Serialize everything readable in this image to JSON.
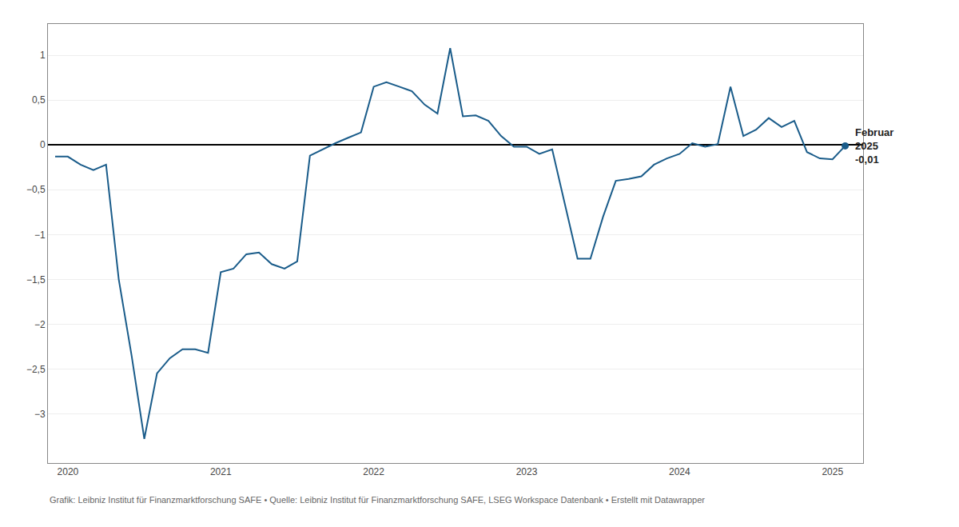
{
  "chart_data": {
    "type": "line",
    "color": "#1a5c8a",
    "caption": "Grafik: Leibniz Institut für Finanzmarktforschung SAFE • Quelle: Leibniz Institut für Finanzmarktforschung SAFE, LSEG Workspace Datenbank • Erstellt mit Datawrapper",
    "x": [
      2019.917,
      2020.0,
      2020.083,
      2020.167,
      2020.25,
      2020.333,
      2020.417,
      2020.5,
      2020.583,
      2020.667,
      2020.75,
      2020.833,
      2020.917,
      2021.0,
      2021.083,
      2021.167,
      2021.25,
      2021.333,
      2021.417,
      2021.5,
      2021.583,
      2021.667,
      2021.75,
      2021.833,
      2021.917,
      2022.0,
      2022.083,
      2022.167,
      2022.25,
      2022.333,
      2022.417,
      2022.5,
      2022.583,
      2022.667,
      2022.75,
      2022.833,
      2022.917,
      2023.0,
      2023.083,
      2023.167,
      2023.25,
      2023.333,
      2023.417,
      2023.5,
      2023.583,
      2023.667,
      2023.75,
      2023.833,
      2023.917,
      2024.0,
      2024.083,
      2024.167,
      2024.25,
      2024.333,
      2024.417,
      2024.5,
      2024.583,
      2024.667,
      2024.75,
      2024.833,
      2024.917,
      2025.0,
      2025.083
    ],
    "values": [
      -0.13,
      -0.13,
      -0.22,
      -0.28,
      -0.22,
      -1.5,
      -2.35,
      -3.28,
      -2.55,
      -2.38,
      -2.28,
      -2.28,
      -2.32,
      -1.42,
      -1.38,
      -1.22,
      -1.2,
      -1.33,
      -1.38,
      -1.3,
      -0.12,
      -0.05,
      0.02,
      0.08,
      0.14,
      0.65,
      0.7,
      0.65,
      0.6,
      0.45,
      0.35,
      1.08,
      0.32,
      0.33,
      0.27,
      0.1,
      -0.02,
      -0.02,
      -0.1,
      -0.05,
      -0.65,
      -1.27,
      -1.27,
      -0.8,
      -0.4,
      -0.38,
      -0.35,
      -0.22,
      -0.15,
      -0.1,
      0.02,
      -0.02,
      0.01,
      0.65,
      0.1,
      0.17,
      0.3,
      0.2,
      0.27,
      -0.08,
      -0.15,
      -0.16,
      -0.01
    ],
    "xlim": [
      2019.87,
      2025.2
    ],
    "ylim": [
      -3.55,
      1.35
    ],
    "xticks": [
      2020,
      2021,
      2022,
      2023,
      2024,
      2025
    ],
    "yticks": [
      1,
      {
        "value": 0.5,
        "label": "0,5"
      },
      0,
      {
        "value": -0.5,
        "label": "−0,5"
      },
      {
        "value": -1,
        "label": "−1"
      },
      {
        "value": -1.5,
        "label": "−1,5"
      },
      {
        "value": -2,
        "label": "−2"
      },
      {
        "value": -2.5,
        "label": "−2,5"
      },
      {
        "value": -3,
        "label": "−3"
      }
    ],
    "grid": "y",
    "annotations": [
      {
        "text": "Februar\n2025\n-0,01",
        "x": 2025.083,
        "y": -0.01
      }
    ]
  }
}
